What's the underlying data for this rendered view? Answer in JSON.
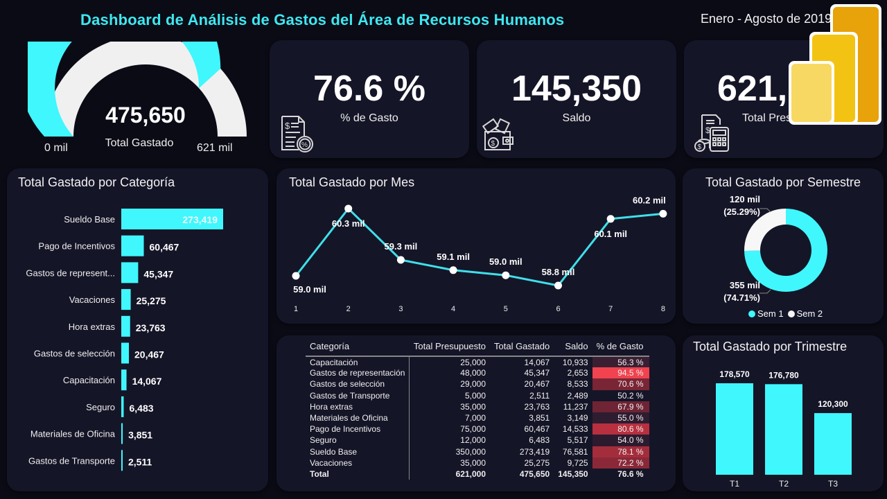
{
  "header": {
    "title": "Dashboard de Análisis de Gastos del Área de Recursos Humanos",
    "period": "Enero - Agosto de 2019"
  },
  "colors": {
    "accent": "#3ff7fc",
    "title": "#3ee8f0",
    "card_bg": "#151528",
    "page_bg": "#0b0b16",
    "remainder": "#f0f0f0"
  },
  "gauge": {
    "value": "475,650",
    "label": "Total Gastado",
    "min_label": "0 mil",
    "max_label": "621 mil",
    "value_num": 475650,
    "max_num": 621000
  },
  "kpis": [
    {
      "value": "76.6 %",
      "label": "% de Gasto",
      "icon": "invoice-percent-icon"
    },
    {
      "value": "145,350",
      "label": "Saldo",
      "icon": "wallet-money-icon"
    },
    {
      "value": "621,000",
      "value_visible": "621,",
      "label": "Total Presupuesto",
      "label_visible": "Total Pres",
      "icon": "budget-calculator-icon"
    }
  ],
  "category_chart": {
    "title": "Total Gastado por Categoría"
  },
  "month_chart": {
    "title": "Total Gastado por Mes"
  },
  "semester_chart": {
    "title": "Total Gastado por Semestre",
    "labels": [
      {
        "value": "120 mil",
        "pct": "(25.29%)"
      },
      {
        "value": "355 mil",
        "pct": "(74.71%)"
      }
    ],
    "legend": [
      "Sem 1",
      "Sem 2"
    ]
  },
  "quarter_chart": {
    "title": "Total Gastado por Trimestre"
  },
  "table": {
    "headers": [
      "Categoría",
      "Total Presupuesto",
      "Total Gastado",
      "Saldo",
      "% de Gasto"
    ],
    "rows": [
      [
        "Capacitación",
        "25,000",
        "14,067",
        "10,933",
        "56.3 %"
      ],
      [
        "Gastos de representación",
        "48,000",
        "45,347",
        "2,653",
        "94.5 %"
      ],
      [
        "Gastos de selección",
        "29,000",
        "20,467",
        "8,533",
        "70.6 %"
      ],
      [
        "Gastos de Transporte",
        "5,000",
        "2,511",
        "2,489",
        "50.2 %"
      ],
      [
        "Hora extras",
        "35,000",
        "23,763",
        "11,237",
        "67.9 %"
      ],
      [
        "Materiales de Oficina",
        "7,000",
        "3,851",
        "3,149",
        "55.0 %"
      ],
      [
        "Pago de Incentivos",
        "75,000",
        "60,467",
        "14,533",
        "80.6 %"
      ],
      [
        "Seguro",
        "12,000",
        "6,483",
        "5,517",
        "54.0 %"
      ],
      [
        "Sueldo Base",
        "350,000",
        "273,419",
        "76,581",
        "78.1 %"
      ],
      [
        "Vacaciones",
        "35,000",
        "25,275",
        "9,725",
        "72.2 %"
      ]
    ],
    "pct_colors": [
      "#3a1f33",
      "#f0434f",
      "#7a2535",
      "transparent",
      "#6e2434",
      "#2e1c30",
      "#b8303f",
      "#2c1b2f",
      "#a42d3c",
      "#8a2838"
    ],
    "total": [
      "Total",
      "621,000",
      "475,650",
      "145,350",
      "76.6 %"
    ]
  },
  "chart_data": [
    {
      "type": "bar",
      "orientation": "horizontal",
      "title": "Total Gastado por Categoría",
      "categories": [
        "Sueldo Base",
        "Pago de Incentivos",
        "Gastos de represent...",
        "Vacaciones",
        "Hora extras",
        "Gastos de selección",
        "Capacitación",
        "Seguro",
        "Materiales de Oficina",
        "Gastos de Transporte"
      ],
      "values": [
        273419,
        60467,
        45347,
        25275,
        23763,
        20467,
        14067,
        6483,
        3851,
        2511
      ],
      "value_labels": [
        "273,419",
        "60,467",
        "45,347",
        "25,275",
        "23,763",
        "20,467",
        "14,067",
        "6,483",
        "3,851",
        "2,511"
      ],
      "xlabel": "",
      "ylabel": "",
      "grid": false,
      "legend": "none"
    },
    {
      "type": "line",
      "title": "Total Gastado por Mes",
      "x": [
        "1",
        "2",
        "3",
        "4",
        "5",
        "6",
        "7",
        "8"
      ],
      "values": [
        59.0,
        60.3,
        59.3,
        59.1,
        59.0,
        58.8,
        60.1,
        60.2
      ],
      "value_labels": [
        "59.0 mil",
        "60.3 mil",
        "59.3 mil",
        "59.1 mil",
        "59.0 mil",
        "58.8 mil",
        "60.1 mil",
        "60.2 mil"
      ],
      "unit": "mil",
      "xlabel": "",
      "ylabel": "",
      "grid": false,
      "legend": "none"
    },
    {
      "type": "pie",
      "donut": true,
      "title": "Total Gastado por Semestre",
      "categories": [
        "Sem 1",
        "Sem 2"
      ],
      "values": [
        355,
        120
      ],
      "percentages": [
        74.71,
        25.29
      ],
      "unit": "mil",
      "legend": "bottom"
    },
    {
      "type": "bar",
      "title": "Total Gastado por Trimestre",
      "categories": [
        "T1",
        "T2",
        "T3"
      ],
      "values": [
        178570,
        176780,
        120300
      ],
      "value_labels": [
        "178,570",
        "176,780",
        "120,300"
      ],
      "grid": false,
      "legend": "none"
    },
    {
      "type": "gauge",
      "title": "Total Gastado",
      "value": 475650,
      "min": 0,
      "max": 621000,
      "min_label": "0 mil",
      "max_label": "621 mil"
    }
  ]
}
